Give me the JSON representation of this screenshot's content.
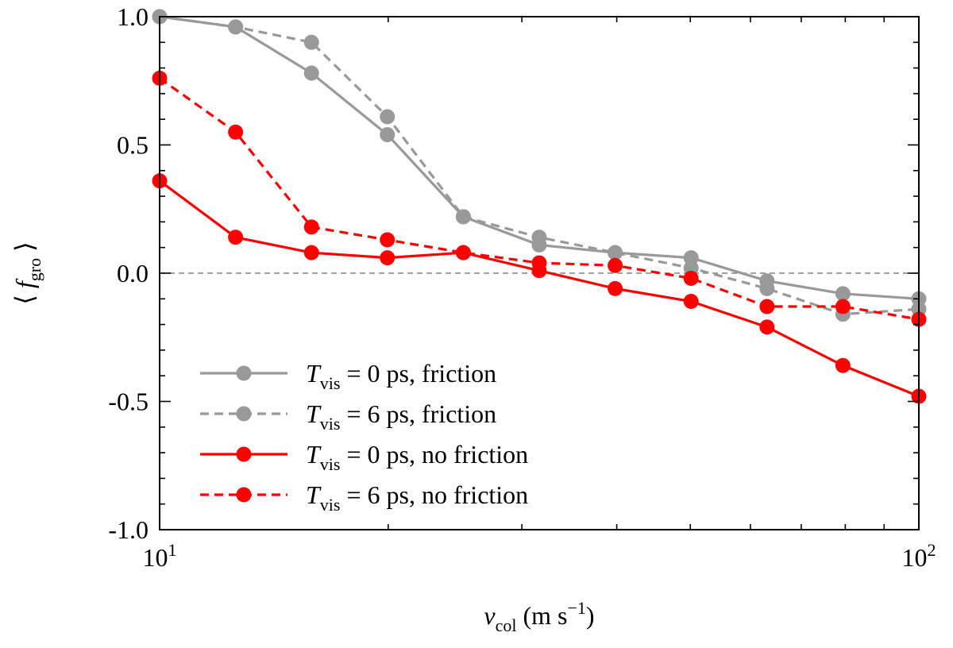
{
  "chart_data": {
    "type": "line",
    "xscale": "log",
    "xlim": [
      10,
      100
    ],
    "ylim": [
      -1.0,
      1.0
    ],
    "xlabel": {
      "var": "v",
      "sub": "col",
      "unit": "(m s",
      "sup": "−1",
      "close": ")"
    },
    "ylabel": {
      "open": "⟨",
      "var": "f",
      "sub": "gro",
      "close": "⟩"
    },
    "x_ticks": [
      {
        "value": 10,
        "base": "10",
        "exp": "1"
      },
      {
        "value": 100,
        "base": "10",
        "exp": "2"
      }
    ],
    "y_ticks": [
      {
        "value": 1.0,
        "label": "1.0"
      },
      {
        "value": 0.5,
        "label": "0.5"
      },
      {
        "value": 0.0,
        "label": "0.0"
      },
      {
        "value": -0.5,
        "label": "-0.5"
      },
      {
        "value": -1.0,
        "label": "-1.0"
      }
    ],
    "reference_line": {
      "y": 0.0,
      "color": "#808080",
      "dash": true
    },
    "series": [
      {
        "name": "T_vis = 0 ps, friction",
        "legend": {
          "var": "T",
          "sub": "vis",
          "rest": " = 0 ps, friction"
        },
        "color": "#999999",
        "dashed": false,
        "x": [
          10,
          12.59,
          15.85,
          19.95,
          25.12,
          31.62,
          39.81,
          50.12,
          63.1,
          79.43,
          100
        ],
        "y": [
          1.0,
          0.96,
          0.78,
          0.54,
          0.22,
          0.11,
          0.08,
          0.06,
          -0.03,
          -0.08,
          -0.1
        ]
      },
      {
        "name": "T_vis = 6 ps, friction",
        "legend": {
          "var": "T",
          "sub": "vis",
          "rest": " = 6 ps, friction"
        },
        "color": "#999999",
        "dashed": true,
        "x": [
          10,
          12.59,
          15.85,
          19.95,
          25.12,
          31.62,
          39.81,
          50.12,
          63.1,
          79.43,
          100
        ],
        "y": [
          1.0,
          0.96,
          0.9,
          0.61,
          0.22,
          0.14,
          0.08,
          0.02,
          -0.06,
          -0.16,
          -0.14
        ]
      },
      {
        "name": "T_vis = 0 ps, no friction",
        "legend": {
          "var": "T",
          "sub": "vis",
          "rest": " = 0 ps, no friction"
        },
        "color": "#ff0000",
        "dashed": false,
        "x": [
          10,
          12.59,
          15.85,
          19.95,
          25.12,
          31.62,
          39.81,
          50.12,
          63.1,
          79.43,
          100
        ],
        "y": [
          0.36,
          0.14,
          0.08,
          0.06,
          0.08,
          0.01,
          -0.06,
          -0.11,
          -0.21,
          -0.36,
          -0.48
        ]
      },
      {
        "name": "T_vis = 6 ps, no friction",
        "legend": {
          "var": "T",
          "sub": "vis",
          "rest": " = 6 ps, no friction"
        },
        "color": "#ff0000",
        "dashed": true,
        "x": [
          10,
          12.59,
          15.85,
          19.95,
          25.12,
          31.62,
          39.81,
          50.12,
          63.1,
          79.43,
          100
        ],
        "y": [
          0.76,
          0.55,
          0.18,
          0.13,
          0.08,
          0.04,
          0.03,
          -0.02,
          -0.13,
          -0.13,
          -0.18
        ]
      }
    ],
    "legend_position": "lower-left"
  }
}
